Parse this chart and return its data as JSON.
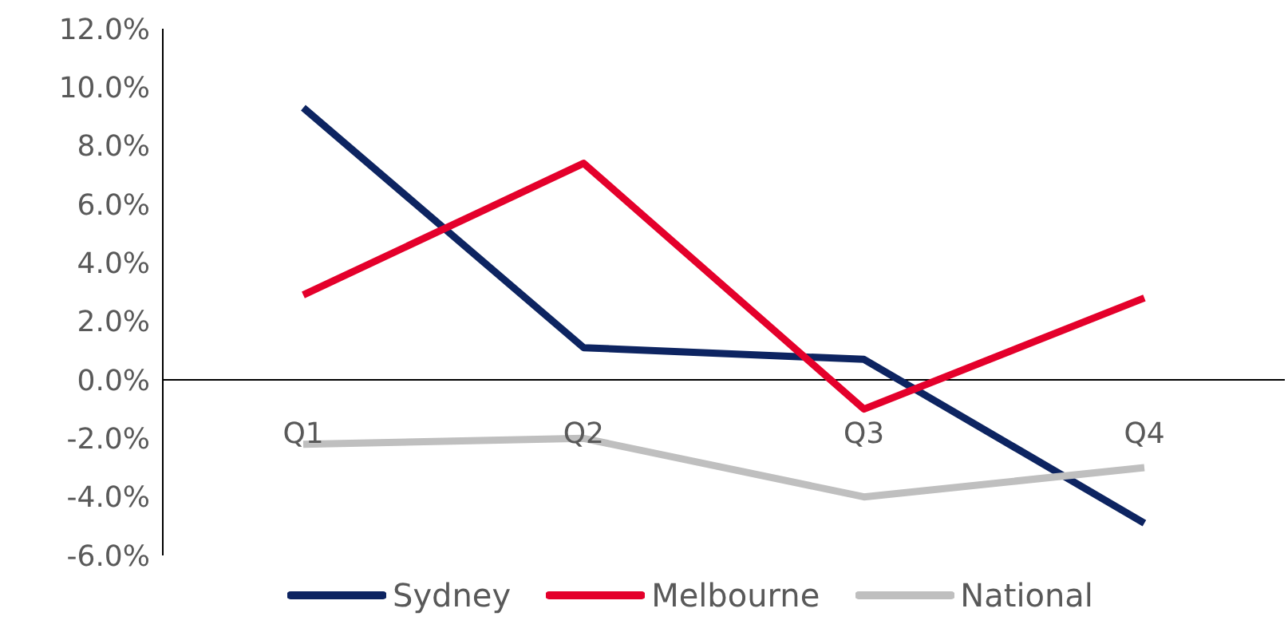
{
  "chart_data": {
    "type": "line",
    "categories": [
      "Q1",
      "Q2",
      "Q3",
      "Q4"
    ],
    "series": [
      {
        "name": "Sydney",
        "color": "#0d2461",
        "values": [
          9.3,
          1.1,
          0.7,
          -4.9
        ]
      },
      {
        "name": "Melbourne",
        "color": "#e4002b",
        "values": [
          2.9,
          7.4,
          -1.0,
          2.8
        ]
      },
      {
        "name": "National",
        "color": "#bfbfbf",
        "values": [
          -2.2,
          -2.0,
          -4.0,
          -3.0
        ]
      }
    ],
    "ylim": [
      -6,
      12
    ],
    "yticks": [
      {
        "value": -6,
        "label": "-6.0%"
      },
      {
        "value": -4,
        "label": "-4.0%"
      },
      {
        "value": -2,
        "label": "-2.0%"
      },
      {
        "value": 0,
        "label": "0.0%"
      },
      {
        "value": 2,
        "label": "2.0%"
      },
      {
        "value": 4,
        "label": "4.0%"
      },
      {
        "value": 6,
        "label": "6.0%"
      },
      {
        "value": 8,
        "label": "8.0%"
      },
      {
        "value": 10,
        "label": "10.0%"
      },
      {
        "value": 12,
        "label": "12.0%"
      }
    ],
    "grid": false,
    "legend": "bottom",
    "marker": "none",
    "line_style": "solid"
  }
}
